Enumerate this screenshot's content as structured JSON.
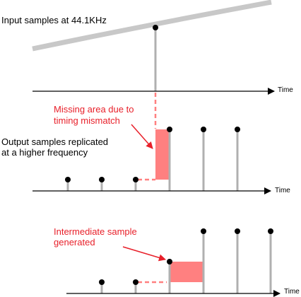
{
  "labels": {
    "input": "Input samples at 44.1KHz",
    "output": [
      "Output samples replicated",
      "at a higher frequency"
    ],
    "missing": [
      "Missing area due to",
      "timing mismatch"
    ],
    "intermediate": [
      "Intermediate sample",
      "generated"
    ]
  },
  "axes": {
    "time_label": "Time"
  },
  "colors": {
    "stem": "#b0b0b0",
    "curve": "#c8c8c8",
    "highlight_fill": "#ff8080",
    "highlight_stroke": "#e8202a",
    "annotation": "#e8202a",
    "axis": "#000000",
    "dot": "#000000"
  }
}
